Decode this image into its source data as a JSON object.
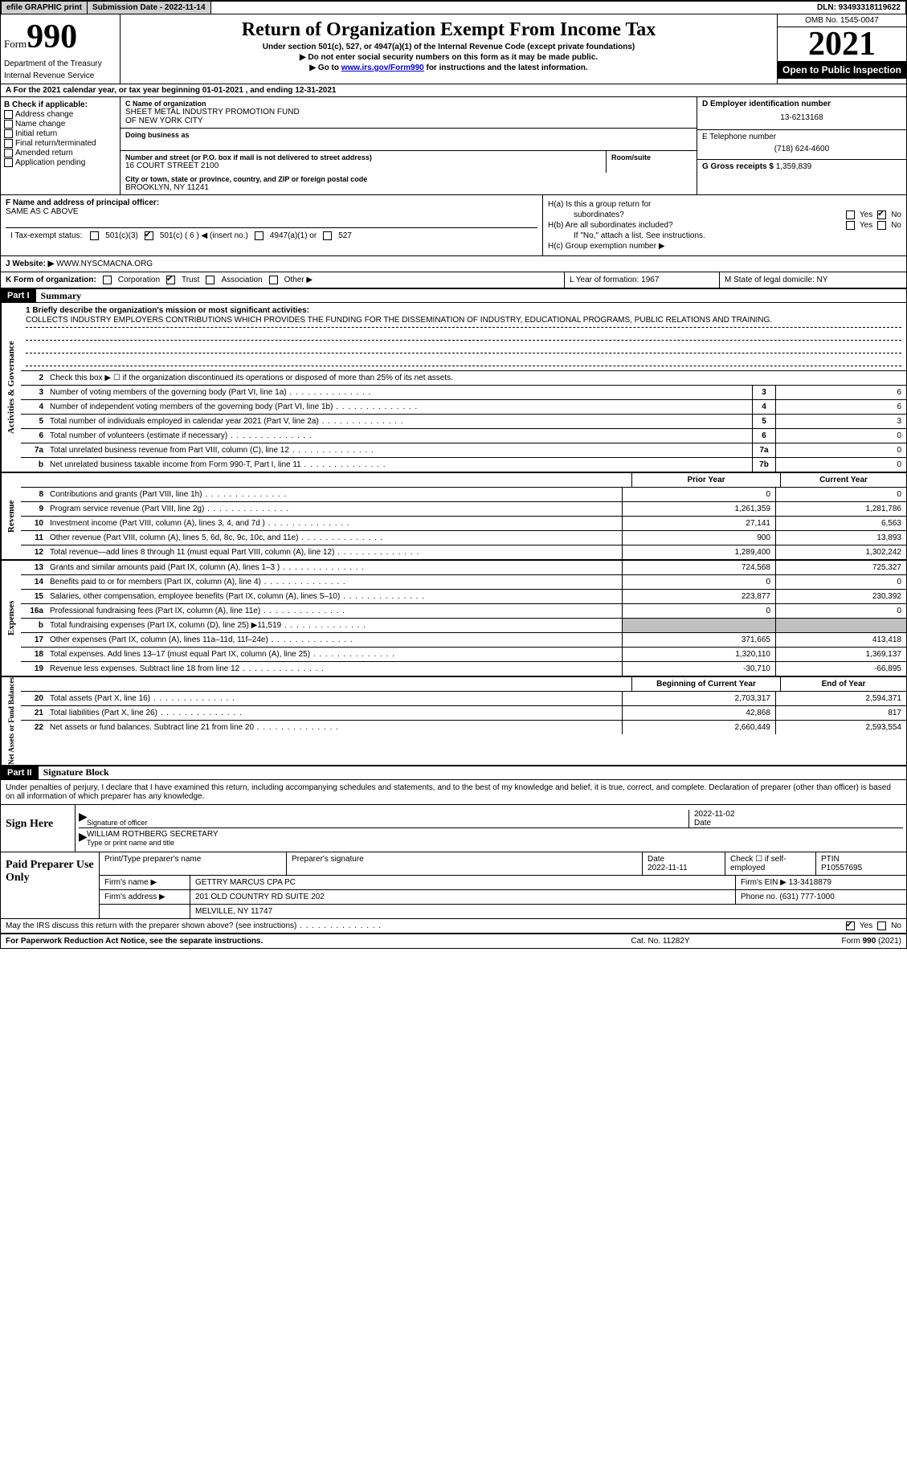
{
  "top": {
    "efile": "efile GRAPHIC print",
    "sub_label": "Submission Date - 2022-11-14",
    "dln": "DLN: 93493318119622"
  },
  "header": {
    "form_word": "Form",
    "form_num": "990",
    "dept": "Department of the Treasury",
    "irs": "Internal Revenue Service",
    "title": "Return of Organization Exempt From Income Tax",
    "subtitle": "Under section 501(c), 527, or 4947(a)(1) of the Internal Revenue Code (except private foundations)",
    "note1": "▶ Do not enter social security numbers on this form as it may be made public.",
    "note2_pre": "▶ Go to ",
    "note2_link": "www.irs.gov/Form990",
    "note2_post": " for instructions and the latest information.",
    "omb": "OMB No. 1545-0047",
    "year": "2021",
    "inspection": "Open to Public Inspection"
  },
  "row_a": "A For the 2021 calendar year, or tax year beginning 01-01-2021    , and ending 12-31-2021",
  "col_b": {
    "label": "B Check if applicable:",
    "opts": [
      "Address change",
      "Name change",
      "Initial return",
      "Final return/terminated",
      "Amended return",
      "Application pending"
    ]
  },
  "col_c": {
    "name_label": "C Name of organization",
    "name1": "SHEET METAL INDUSTRY PROMOTION FUND",
    "name2": "OF NEW YORK CITY",
    "dba_label": "Doing business as",
    "addr_label": "Number and street (or P.O. box if mail is not delivered to street address)",
    "addr": "16 COURT STREET 2100",
    "room_label": "Room/suite",
    "city_label": "City or town, state or province, country, and ZIP or foreign postal code",
    "city": "BROOKLYN, NY  11241"
  },
  "col_d": {
    "ein_label": "D Employer identification number",
    "ein": "13-6213168",
    "phone_label": "E Telephone number",
    "phone": "(718) 624-4600",
    "gross_label": "G Gross receipts $ ",
    "gross": "1,359,839"
  },
  "f": {
    "label": "F Name and address of principal officer:",
    "value": "SAME AS C ABOVE"
  },
  "h": {
    "a": "H(a)  Is this a group return for",
    "a2": "subordinates?",
    "b": "H(b)  Are all subordinates included?",
    "b2": "If \"No,\" attach a list. See instructions.",
    "c": "H(c)  Group exemption number ▶",
    "yes": "Yes",
    "no": "No"
  },
  "row_i": {
    "label": "I   Tax-exempt status:",
    "o1": "501(c)(3)",
    "o2": "501(c) ( 6 ) ◀ (insert no.)",
    "o3": "4947(a)(1) or",
    "o4": "527"
  },
  "row_j": {
    "label": "J   Website: ▶  ",
    "val": "WWW.NYSCMACNA.ORG"
  },
  "row_k": {
    "label": "K Form of organization:",
    "opts": [
      "Corporation",
      "Trust",
      "Association",
      "Other ▶"
    ],
    "l": "L Year of formation: 1967",
    "m": "M State of legal domicile: NY"
  },
  "parts": {
    "p1": "Part I",
    "p1t": "Summary",
    "p2": "Part II",
    "p2t": "Signature Block"
  },
  "summary": {
    "l1_label": "1   Briefly describe the organization's mission or most significant activities:",
    "l1_text": "COLLECTS INDUSTRY EMPLOYERS CONTRIBUTIONS WHICH PROVIDES THE FUNDING FOR THE DISSEMINATION OF INDUSTRY, EDUCATIONAL PROGRAMS, PUBLIC RELATIONS AND TRAINING.",
    "l2": "Check this box ▶ ☐ if the organization discontinued its operations or disposed of more than 25% of its net assets.",
    "lines_ag": [
      {
        "n": "3",
        "t": "Number of voting members of the governing body (Part VI, line 1a)",
        "b": "3",
        "v": "6"
      },
      {
        "n": "4",
        "t": "Number of independent voting members of the governing body (Part VI, line 1b)",
        "b": "4",
        "v": "6"
      },
      {
        "n": "5",
        "t": "Total number of individuals employed in calendar year 2021 (Part V, line 2a)",
        "b": "5",
        "v": "3"
      },
      {
        "n": "6",
        "t": "Total number of volunteers (estimate if necessary)",
        "b": "6",
        "v": "0"
      },
      {
        "n": "7a",
        "t": "Total unrelated business revenue from Part VIII, column (C), line 12",
        "b": "7a",
        "v": "0"
      },
      {
        "n": "b",
        "t": "Net unrelated business taxable income from Form 990-T, Part I, line 11",
        "b": "7b",
        "v": "0"
      }
    ],
    "th_prior": "Prior Year",
    "th_curr": "Current Year",
    "rev": [
      {
        "n": "8",
        "t": "Contributions and grants (Part VIII, line 1h)",
        "p": "0",
        "c": "0"
      },
      {
        "n": "9",
        "t": "Program service revenue (Part VIII, line 2g)",
        "p": "1,261,359",
        "c": "1,281,786"
      },
      {
        "n": "10",
        "t": "Investment income (Part VIII, column (A), lines 3, 4, and 7d )",
        "p": "27,141",
        "c": "6,563"
      },
      {
        "n": "11",
        "t": "Other revenue (Part VIII, column (A), lines 5, 6d, 8c, 9c, 10c, and 11e)",
        "p": "900",
        "c": "13,893"
      },
      {
        "n": "12",
        "t": "Total revenue—add lines 8 through 11 (must equal Part VIII, column (A), line 12)",
        "p": "1,289,400",
        "c": "1,302,242"
      }
    ],
    "exp": [
      {
        "n": "13",
        "t": "Grants and similar amounts paid (Part IX, column (A), lines 1–3 )",
        "p": "724,568",
        "c": "725,327"
      },
      {
        "n": "14",
        "t": "Benefits paid to or for members (Part IX, column (A), line 4)",
        "p": "0",
        "c": "0"
      },
      {
        "n": "15",
        "t": "Salaries, other compensation, employee benefits (Part IX, column (A), lines 5–10)",
        "p": "223,877",
        "c": "230,392"
      },
      {
        "n": "16a",
        "t": "Professional fundraising fees (Part IX, column (A), line 11e)",
        "p": "0",
        "c": "0"
      },
      {
        "n": "b",
        "t": "Total fundraising expenses (Part IX, column (D), line 25) ▶11,519",
        "p": "shaded",
        "c": "shaded"
      },
      {
        "n": "17",
        "t": "Other expenses (Part IX, column (A), lines 11a–11d, 11f–24e)",
        "p": "371,665",
        "c": "413,418"
      },
      {
        "n": "18",
        "t": "Total expenses. Add lines 13–17 (must equal Part IX, column (A), line 25)",
        "p": "1,320,110",
        "c": "1,369,137"
      },
      {
        "n": "19",
        "t": "Revenue less expenses. Subtract line 18 from line 12",
        "p": "-30,710",
        "c": "-66,895"
      }
    ],
    "th_begin": "Beginning of Current Year",
    "th_end": "End of Year",
    "net": [
      {
        "n": "20",
        "t": "Total assets (Part X, line 16)",
        "p": "2,703,317",
        "c": "2,594,371"
      },
      {
        "n": "21",
        "t": "Total liabilities (Part X, line 26)",
        "p": "42,868",
        "c": "817"
      },
      {
        "n": "22",
        "t": "Net assets or fund balances. Subtract line 21 from line 20",
        "p": "2,660,449",
        "c": "2,593,554"
      }
    ],
    "vtab_ag": "Activities & Governance",
    "vtab_rev": "Revenue",
    "vtab_exp": "Expenses",
    "vtab_net": "Net Assets or Fund Balances"
  },
  "penalty": "Under penalties of perjury, I declare that I have examined this return, including accompanying schedules and statements, and to the best of my knowledge and belief, it is true, correct, and complete. Declaration of preparer (other than officer) is based on all information of which preparer has any knowledge.",
  "sign": {
    "label": "Sign Here",
    "sig_label": "Signature of officer",
    "date": "2022-11-02",
    "date_label": "Date",
    "name": "WILLIAM ROTHBERG  SECRETARY",
    "name_label": "Type or print name and title"
  },
  "prep": {
    "label": "Paid Preparer Use Only",
    "r1": {
      "a": "Print/Type preparer's name",
      "b": "Preparer's signature",
      "c": "Date",
      "c2": "2022-11-11",
      "d": "Check ☐ if self-employed",
      "e": "PTIN",
      "e2": "P10557695"
    },
    "r2": {
      "a": "Firm's name    ▶",
      "b": "GETTRY MARCUS CPA PC",
      "c": "Firm's EIN ▶ 13-3418879"
    },
    "r3": {
      "a": "Firm's address ▶",
      "b": "201 OLD COUNTRY RD SUITE 202",
      "c": "Phone no. (631) 777-1000"
    },
    "r4": "MELVILLE, NY  11747"
  },
  "discuss": {
    "txt": "May the IRS discuss this return with the preparer shown above? (see instructions)",
    "yes": "Yes",
    "no": "No"
  },
  "footer": {
    "l": "For Paperwork Reduction Act Notice, see the separate instructions.",
    "c": "Cat. No. 11282Y",
    "r": "Form 990 (2021)"
  }
}
